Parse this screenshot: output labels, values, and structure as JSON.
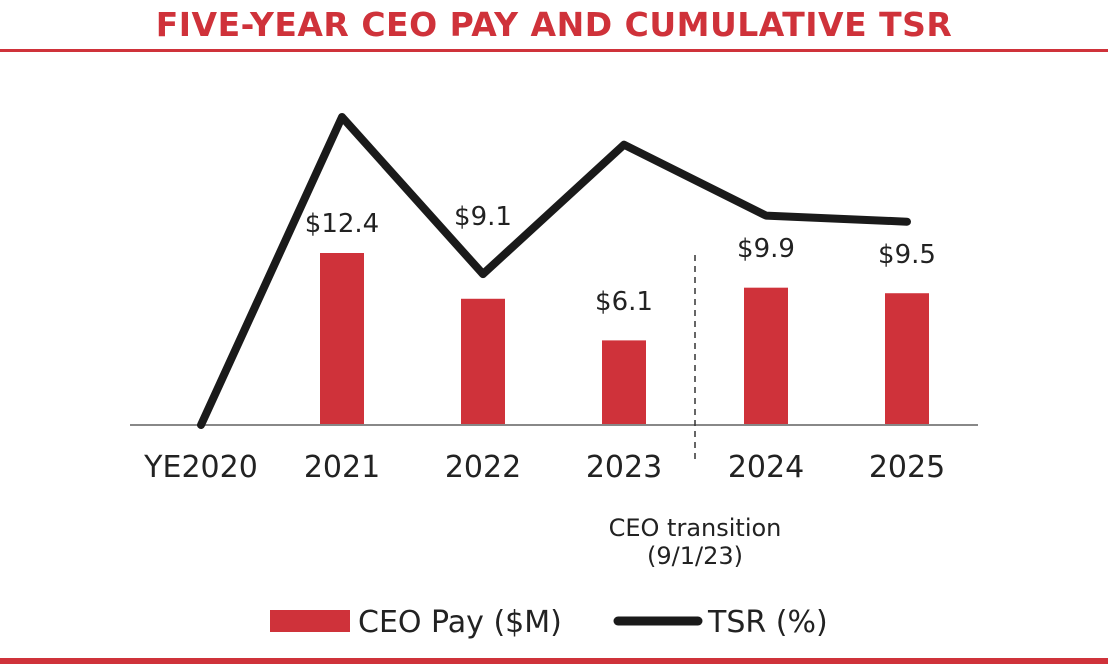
{
  "chart_data": {
    "type": "bar",
    "title": "FIVE-YEAR CEO PAY AND CUMULATIVE TSR",
    "categories": [
      "YE2020",
      "2021",
      "2022",
      "2023",
      "2024",
      "2025"
    ],
    "series": [
      {
        "name": "CEO Pay ($M)",
        "kind": "bar",
        "values": [
          null,
          12.4,
          9.1,
          6.1,
          9.9,
          9.5
        ],
        "labels": [
          "",
          "$12.4",
          "$9.1",
          "$6.1",
          "$9.9",
          "$9.5"
        ]
      },
      {
        "name": "TSR (%)",
        "kind": "line",
        "values": [
          0,
          100,
          49,
          91,
          68,
          66
        ]
      }
    ],
    "pay_ylim": [
      0,
      16
    ],
    "tsr_ylim": [
      0,
      100
    ],
    "annotation": {
      "line1": "CEO transition",
      "line2": "(9/1/23)",
      "between": [
        "2023",
        "2024"
      ]
    },
    "legend": {
      "position": "bottom",
      "bar_label": "CEO Pay ($M)",
      "line_label": "TSR (%)"
    },
    "colors": {
      "bar": "#cf323a",
      "line": "#1a1a1a",
      "axis": "#888888",
      "accent": "#cf323a"
    }
  }
}
